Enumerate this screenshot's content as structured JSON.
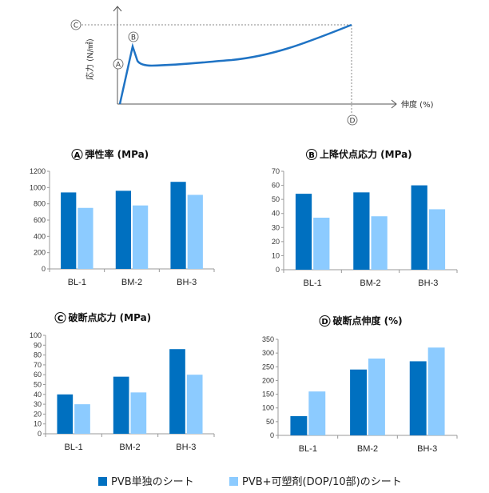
{
  "diagram": {
    "y_label": "応力 (N/㎟)",
    "x_label": "伸度 (%)",
    "markers": {
      "A": "A",
      "B": "B",
      "C": "C",
      "D": "D"
    },
    "curve_color": "#1f73c4"
  },
  "legend": {
    "placement": "bottom",
    "items": [
      {
        "label": "PVB単独のシート",
        "color": "#0070c0"
      },
      {
        "label": "PVB+可塑剤(DOP/10部)のシート",
        "color": "#8ccbff"
      }
    ]
  },
  "chart_data": [
    {
      "type": "bar",
      "marker": "A",
      "title": "弾性率 (MPa)",
      "categories": [
        "BL-1",
        "BM-2",
        "BH-3"
      ],
      "ylim": [
        0,
        1200
      ],
      "yticks": [
        0,
        200,
        400,
        600,
        800,
        1000,
        1200
      ],
      "series": [
        {
          "name": "PVB単独のシート",
          "values": [
            940,
            960,
            1070
          ]
        },
        {
          "name": "PVB+可塑剤(DOP/10部)のシート",
          "values": [
            750,
            780,
            910
          ]
        }
      ],
      "grid": false
    },
    {
      "type": "bar",
      "marker": "B",
      "title": "上降伏点応力 (MPa)",
      "categories": [
        "BL-1",
        "BM-2",
        "BH-3"
      ],
      "ylim": [
        0,
        70
      ],
      "yticks": [
        0,
        10,
        20,
        30,
        40,
        50,
        60,
        70
      ],
      "series": [
        {
          "name": "PVB単独のシート",
          "values": [
            54,
            55,
            60
          ]
        },
        {
          "name": "PVB+可塑剤(DOP/10部)のシート",
          "values": [
            37,
            38,
            43
          ]
        }
      ],
      "grid": false
    },
    {
      "type": "bar",
      "marker": "C",
      "title": "破断点応力 (MPa)",
      "categories": [
        "BL-1",
        "BM-2",
        "BH-3"
      ],
      "ylim": [
        0,
        100
      ],
      "yticks": [
        0,
        10,
        20,
        30,
        40,
        50,
        60,
        70,
        80,
        90,
        100
      ],
      "series": [
        {
          "name": "PVB単独のシート",
          "values": [
            40,
            58,
            86
          ]
        },
        {
          "name": "PVB+可塑剤(DOP/10部)のシート",
          "values": [
            30,
            42,
            60
          ]
        }
      ],
      "grid": false
    },
    {
      "type": "bar",
      "marker": "D",
      "title": "破断点伸度 (%)",
      "categories": [
        "BL-1",
        "BM-2",
        "BH-3"
      ],
      "ylim": [
        0,
        350
      ],
      "yticks": [
        0,
        50,
        100,
        150,
        200,
        250,
        300,
        350
      ],
      "series": [
        {
          "name": "PVB単独のシート",
          "values": [
            70,
            240,
            270
          ]
        },
        {
          "name": "PVB+可塑剤(DOP/10部)のシート",
          "values": [
            160,
            280,
            320
          ]
        }
      ],
      "grid": false
    }
  ]
}
